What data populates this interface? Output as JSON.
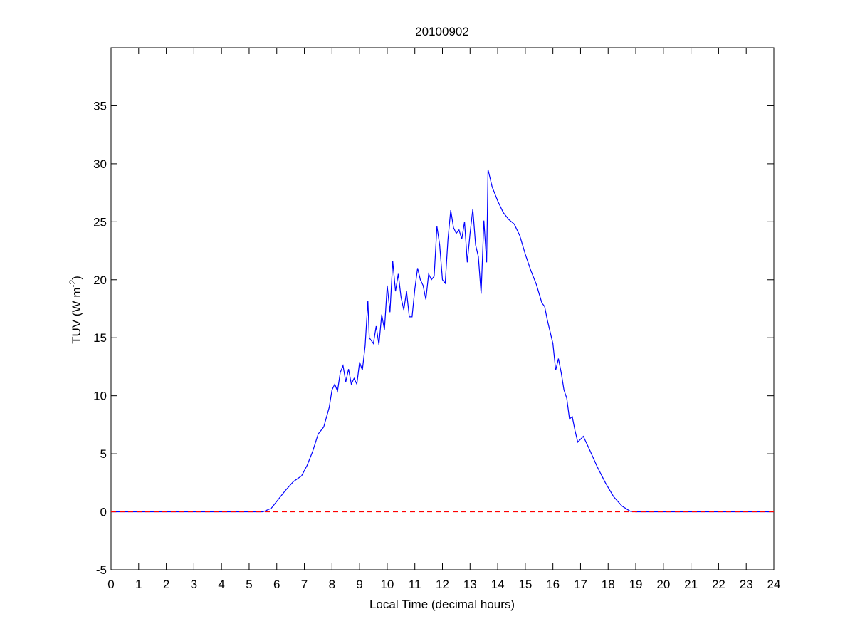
{
  "chart_data": {
    "type": "line",
    "title": "20100902",
    "xlabel": "Local Time (decimal hours)",
    "ylabel": {
      "text": "TUV (W m",
      "superscript": "-2",
      "suffix": ")"
    },
    "xlim": [
      0,
      24
    ],
    "xticks": [
      0,
      1,
      2,
      3,
      4,
      5,
      6,
      7,
      8,
      9,
      10,
      11,
      12,
      13,
      14,
      15,
      16,
      17,
      18,
      19,
      20,
      21,
      22,
      23,
      24
    ],
    "ylim": [
      -5,
      40
    ],
    "yticks": [
      -5,
      0,
      5,
      10,
      15,
      20,
      25,
      30,
      35
    ],
    "grid": false,
    "series": [
      {
        "color": "#0000ff",
        "dash": false,
        "x": [
          0,
          5.5,
          5.8,
          6.0,
          6.3,
          6.6,
          6.9,
          7.1,
          7.3,
          7.5,
          7.7,
          7.9,
          8.0,
          8.1,
          8.2,
          8.3,
          8.4,
          8.5,
          8.6,
          8.7,
          8.8,
          8.9,
          9.0,
          9.1,
          9.2,
          9.3,
          9.35,
          9.5,
          9.6,
          9.7,
          9.8,
          9.9,
          10.0,
          10.1,
          10.2,
          10.3,
          10.4,
          10.5,
          10.6,
          10.7,
          10.8,
          10.9,
          11.0,
          11.1,
          11.2,
          11.3,
          11.4,
          11.5,
          11.6,
          11.7,
          11.8,
          11.9,
          12.0,
          12.1,
          12.2,
          12.3,
          12.4,
          12.5,
          12.6,
          12.7,
          12.8,
          12.9,
          13.0,
          13.1,
          13.2,
          13.3,
          13.4,
          13.5,
          13.6,
          13.65,
          13.8,
          14.0,
          14.2,
          14.4,
          14.6,
          14.8,
          15.0,
          15.2,
          15.4,
          15.6,
          15.7,
          15.8,
          16.0,
          16.1,
          16.2,
          16.3,
          16.4,
          16.5,
          16.6,
          16.7,
          16.8,
          16.9,
          17.1,
          17.3,
          17.6,
          17.9,
          18.2,
          18.5,
          18.8,
          19.0,
          24
        ],
        "values": [
          0,
          0,
          0.3,
          0.9,
          1.8,
          2.6,
          3.1,
          4.0,
          5.2,
          6.7,
          7.3,
          9.0,
          10.5,
          11.0,
          10.4,
          12.0,
          12.6,
          11.2,
          12.3,
          11.0,
          11.5,
          11.0,
          12.9,
          12.2,
          14.3,
          18.2,
          15.0,
          14.5,
          16.0,
          14.4,
          17.0,
          15.7,
          19.5,
          17.2,
          21.6,
          19.0,
          20.5,
          18.5,
          17.4,
          19.0,
          16.8,
          16.8,
          19.2,
          21.0,
          20.0,
          19.5,
          18.3,
          20.5,
          20.0,
          20.3,
          24.6,
          23.0,
          20.0,
          19.7,
          23.5,
          26.0,
          24.5,
          24.0,
          24.3,
          23.5,
          25.0,
          21.5,
          24.0,
          26.1,
          23.0,
          22.0,
          18.8,
          25.1,
          21.5,
          29.5,
          28.0,
          26.8,
          25.8,
          25.2,
          24.8,
          23.8,
          22.2,
          20.8,
          19.6,
          18.0,
          17.7,
          16.5,
          14.5,
          12.2,
          13.2,
          12.0,
          10.5,
          9.8,
          8.0,
          8.2,
          7.0,
          6.0,
          6.5,
          5.5,
          3.9,
          2.5,
          1.3,
          0.5,
          0.05,
          0,
          0
        ]
      },
      {
        "color": "#ff0000",
        "dash": true,
        "x": [
          0,
          24
        ],
        "values": [
          0,
          0
        ]
      }
    ]
  }
}
